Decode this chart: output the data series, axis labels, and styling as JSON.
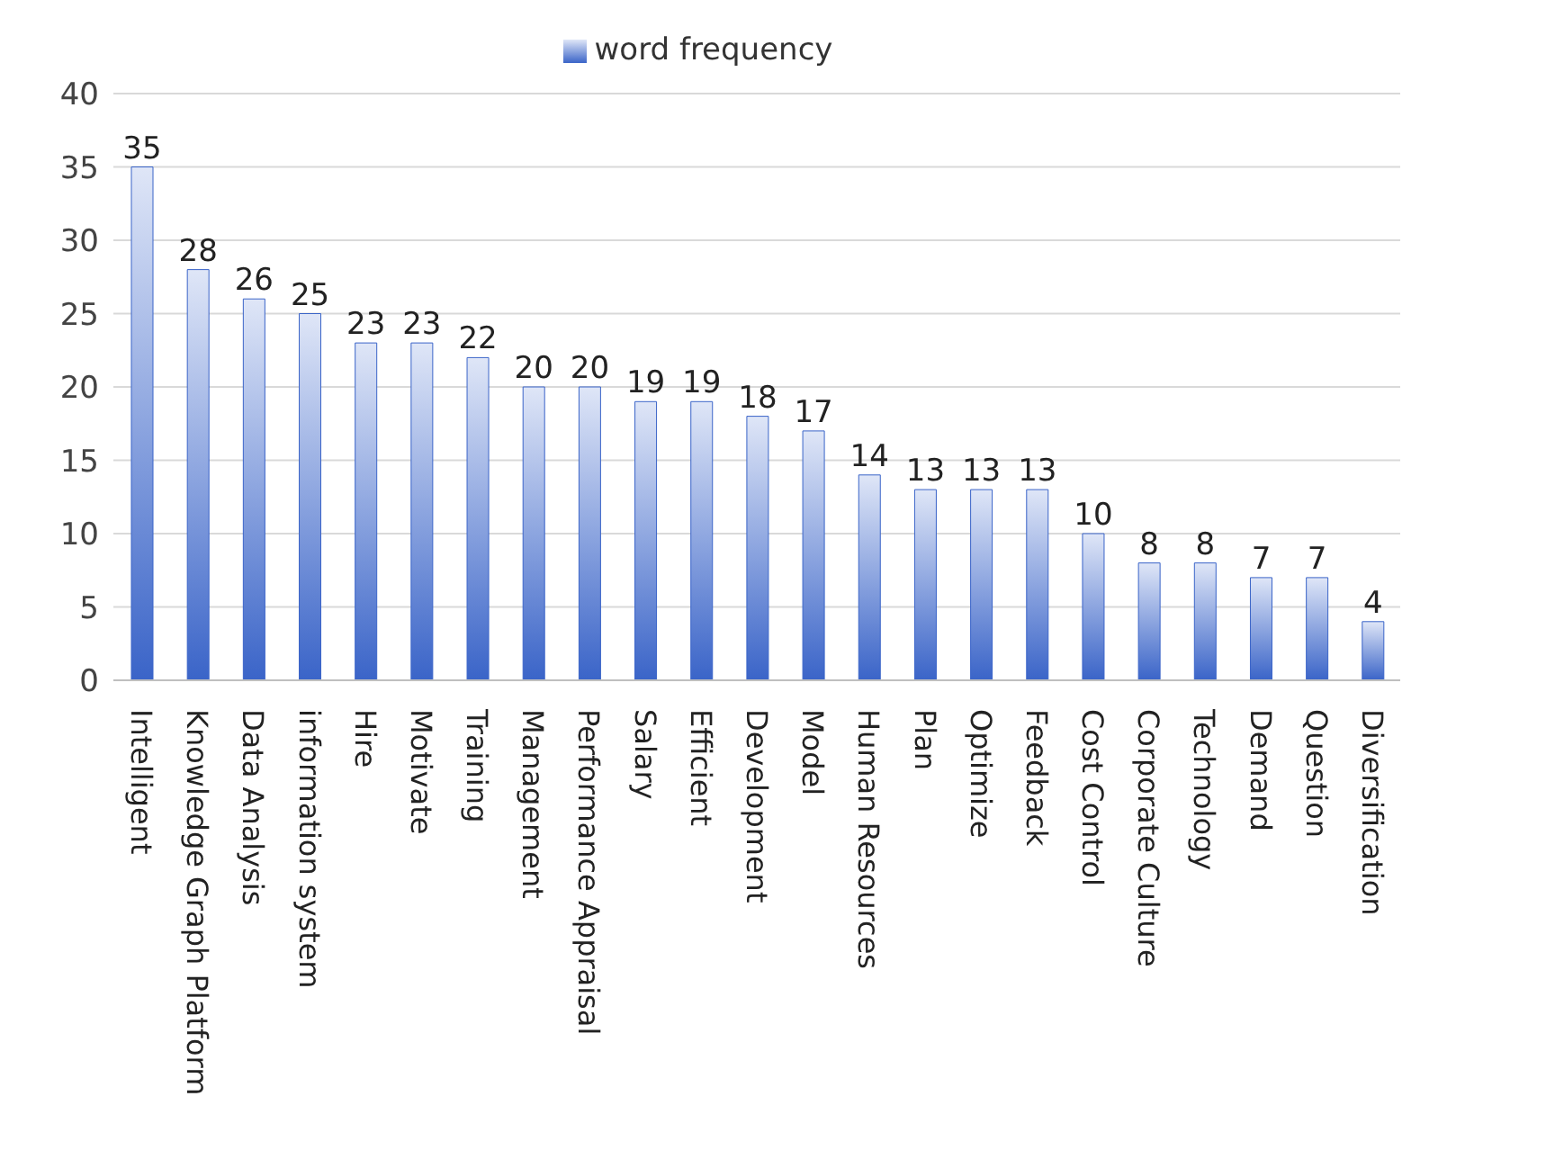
{
  "chart_data": {
    "type": "bar",
    "categories": [
      "Intelligent",
      "Knowledge Graph Platform",
      "Data Analysis",
      "information system",
      "Hire",
      "Motivate",
      "Training",
      "Management",
      "Performance Appraisal",
      "Salary",
      "Efficient",
      "Development",
      "Model",
      "Human Resources",
      "Plan",
      "Optimize",
      "Feedback",
      "Cost Control",
      "Corporate Culture",
      "Technology",
      "Demand",
      "Question",
      "Diversification"
    ],
    "series": [
      {
        "name": "word frequency",
        "color": "#3a64c8",
        "values": [
          35,
          28,
          26,
          25,
          23,
          23,
          22,
          20,
          20,
          19,
          19,
          18,
          17,
          14,
          13,
          13,
          13,
          10,
          8,
          8,
          7,
          7,
          4
        ]
      }
    ],
    "ylim": [
      0,
      40
    ],
    "yticks": [
      0,
      5,
      10,
      15,
      20,
      25,
      30,
      35,
      40
    ],
    "grid": "y",
    "legend": "top",
    "data_labels": true
  }
}
